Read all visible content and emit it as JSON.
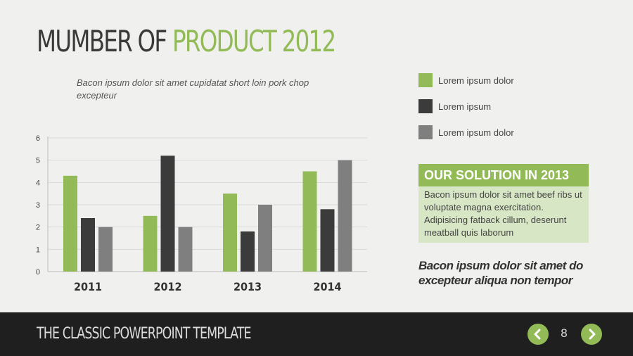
{
  "slide": {
    "title_part1": "MUMBER OF",
    "title_part2": "PRODUCT 2012",
    "subtitle": "Bacon ipsum dolor sit amet cupidatat short loin pork chop excepteur"
  },
  "legend": {
    "items": [
      {
        "label": "Lorem ipsum dolor",
        "color": "#92bb57"
      },
      {
        "label": "Lorem ipsum",
        "color": "#3b3b3b"
      },
      {
        "label": "Lorem ipsum dolor",
        "color": "#7f7f7f"
      }
    ]
  },
  "solution": {
    "title": "OUR SOLUTION IN 2013",
    "body": "Bacon ipsum dolor sit amet beef ribs ut voluptate magna exercitation. Adipisicing fatback cillum, deserunt meatball quis laborum"
  },
  "tagline": "Bacon ipsum dolor sit amet do excepteur aliqua non tempor",
  "footer": {
    "title": "THE CLASSIC POWERPOINT TEMPLATE",
    "page_number": "8",
    "prev_icon": "chevron-left-icon",
    "next_icon": "chevron-right-icon"
  },
  "colors": {
    "accent": "#92bb57",
    "dark": "#3b3b3b",
    "gray": "#7f7f7f"
  },
  "chart_data": {
    "type": "bar",
    "categories": [
      "2011",
      "2012",
      "2013",
      "2014"
    ],
    "series": [
      {
        "name": "Lorem ipsum dolor",
        "values": [
          4.3,
          2.5,
          3.5,
          4.5
        ],
        "color": "#92bb57"
      },
      {
        "name": "Lorem ipsum",
        "values": [
          2.4,
          5.2,
          1.8,
          2.8
        ],
        "color": "#3b3b3b"
      },
      {
        "name": "Lorem ipsum dolor",
        "values": [
          2.0,
          2.0,
          3.0,
          5.0
        ],
        "color": "#7f7f7f"
      }
    ],
    "yticks": [
      "0",
      "1",
      "2",
      "3",
      "4",
      "5",
      "6"
    ],
    "ylim": [
      0,
      6
    ],
    "grid": true,
    "title": "",
    "xlabel": "",
    "ylabel": ""
  }
}
